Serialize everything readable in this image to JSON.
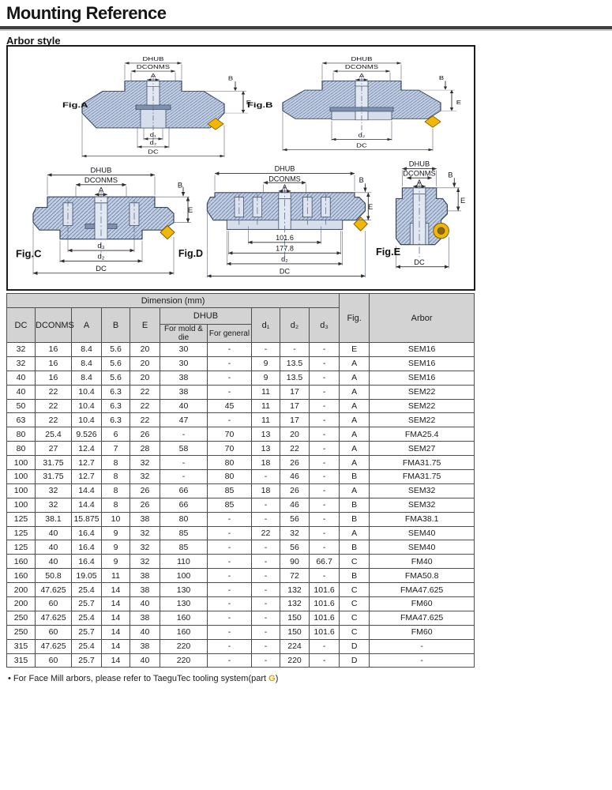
{
  "page": {
    "title": "Mounting Reference",
    "subtitle": "Arbor style"
  },
  "figures": {
    "a": {
      "name": "Fig.A",
      "dhub": "DHUB",
      "dconms": "DCONMS",
      "a": "A",
      "b": "B",
      "e": "E",
      "d1": "d₁",
      "d2": "d₂",
      "dc": "DC"
    },
    "b": {
      "name": "Fig.B",
      "dhub": "DHUB",
      "dconms": "DCONMS",
      "a": "A",
      "b": "B",
      "e": "E",
      "d2": "d₂",
      "dc": "DC"
    },
    "c": {
      "name": "Fig.C",
      "dhub": "DHUB",
      "dconms": "DCONMS",
      "a": "A",
      "b": "B",
      "e": "E",
      "d3": "d₃",
      "d2": "d₂",
      "dc": "DC"
    },
    "d": {
      "name": "Fig.D",
      "dhub": "DHUB",
      "dconms": "DCONMS",
      "a": "A",
      "b": "B",
      "e": "E",
      "dim1": "101.6",
      "dim2": "177.8",
      "d2": "d₂",
      "dc": "DC"
    },
    "e": {
      "name": "Fig.E",
      "dhub": "DHUB",
      "dconms": "DCONMS",
      "a": "A",
      "b": "B",
      "e": "E",
      "dc": "DC"
    }
  },
  "table": {
    "dimension_header": "Dimension (mm)",
    "columns": {
      "dc": "DC",
      "dconms": "DCONMS",
      "a": "A",
      "b": "B",
      "e": "E",
      "dhub": "DHUB",
      "dhub_mold": "For mold & die",
      "dhub_general": "For general",
      "d1": "d₁",
      "d2": "d₂",
      "d3": "d₃",
      "fig": "Fig.",
      "arbor": "Arbor"
    },
    "rows": [
      [
        "32",
        "16",
        "8.4",
        "5.6",
        "20",
        "30",
        "-",
        "-",
        "-",
        "-",
        "E",
        "SEM16"
      ],
      [
        "32",
        "16",
        "8.4",
        "5.6",
        "20",
        "30",
        "-",
        "9",
        "13.5",
        "-",
        "A",
        "SEM16"
      ],
      [
        "40",
        "16",
        "8.4",
        "5.6",
        "20",
        "38",
        "-",
        "9",
        "13.5",
        "-",
        "A",
        "SEM16"
      ],
      [
        "40",
        "22",
        "10.4",
        "6.3",
        "22",
        "38",
        "-",
        "11",
        "17",
        "-",
        "A",
        "SEM22"
      ],
      [
        "50",
        "22",
        "10.4",
        "6.3",
        "22",
        "40",
        "45",
        "11",
        "17",
        "-",
        "A",
        "SEM22"
      ],
      [
        "63",
        "22",
        "10.4",
        "6.3",
        "22",
        "47",
        "-",
        "11",
        "17",
        "-",
        "A",
        "SEM22"
      ],
      [
        "80",
        "25.4",
        "9.526",
        "6",
        "26",
        "-",
        "70",
        "13",
        "20",
        "-",
        "A",
        "FMA25.4"
      ],
      [
        "80",
        "27",
        "12.4",
        "7",
        "28",
        "58",
        "70",
        "13",
        "22",
        "-",
        "A",
        "SEM27"
      ],
      [
        "100",
        "31.75",
        "12.7",
        "8",
        "32",
        "-",
        "80",
        "18",
        "26",
        "-",
        "A",
        "FMA31.75"
      ],
      [
        "100",
        "31.75",
        "12.7",
        "8",
        "32",
        "-",
        "80",
        "-",
        "46",
        "-",
        "B",
        "FMA31.75"
      ],
      [
        "100",
        "32",
        "14.4",
        "8",
        "26",
        "66",
        "85",
        "18",
        "26",
        "-",
        "A",
        "SEM32"
      ],
      [
        "100",
        "32",
        "14.4",
        "8",
        "26",
        "66",
        "85",
        "-",
        "46",
        "-",
        "B",
        "SEM32"
      ],
      [
        "125",
        "38.1",
        "15.875",
        "10",
        "38",
        "80",
        "-",
        "-",
        "56",
        "-",
        "B",
        "FMA38.1"
      ],
      [
        "125",
        "40",
        "16.4",
        "9",
        "32",
        "85",
        "-",
        "22",
        "32",
        "-",
        "A",
        "SEM40"
      ],
      [
        "125",
        "40",
        "16.4",
        "9",
        "32",
        "85",
        "-",
        "-",
        "56",
        "-",
        "B",
        "SEM40"
      ],
      [
        "160",
        "40",
        "16.4",
        "9",
        "32",
        "110",
        "-",
        "-",
        "90",
        "66.7",
        "C",
        "FM40"
      ],
      [
        "160",
        "50.8",
        "19.05",
        "11",
        "38",
        "100",
        "-",
        "-",
        "72",
        "-",
        "B",
        "FMA50.8"
      ],
      [
        "200",
        "47.625",
        "25.4",
        "14",
        "38",
        "130",
        "-",
        "-",
        "132",
        "101.6",
        "C",
        "FMA47.625"
      ],
      [
        "200",
        "60",
        "25.7",
        "14",
        "40",
        "130",
        "-",
        "-",
        "132",
        "101.6",
        "C",
        "FM60"
      ],
      [
        "250",
        "47.625",
        "25.4",
        "14",
        "38",
        "160",
        "-",
        "-",
        "150",
        "101.6",
        "C",
        "FMA47.625"
      ],
      [
        "250",
        "60",
        "25.7",
        "14",
        "40",
        "160",
        "-",
        "-",
        "150",
        "101.6",
        "C",
        "FM60"
      ],
      [
        "315",
        "47.625",
        "25.4",
        "14",
        "38",
        "220",
        "-",
        "-",
        "224",
        "-",
        "D",
        "-"
      ],
      [
        "315",
        "60",
        "25.7",
        "14",
        "40",
        "220",
        "-",
        "-",
        "220",
        "-",
        "D",
        "-"
      ]
    ]
  },
  "footnote": {
    "bullet": "•",
    "prefix": "For Face Mill arbors, please refer to TaeguTec tooling system(part ",
    "highlight": "G",
    "suffix": ")"
  },
  "colors": {
    "accent_gold": "#f2b705",
    "body_fill": "#c3cfe2",
    "header_gray": "#d3d3d3"
  }
}
